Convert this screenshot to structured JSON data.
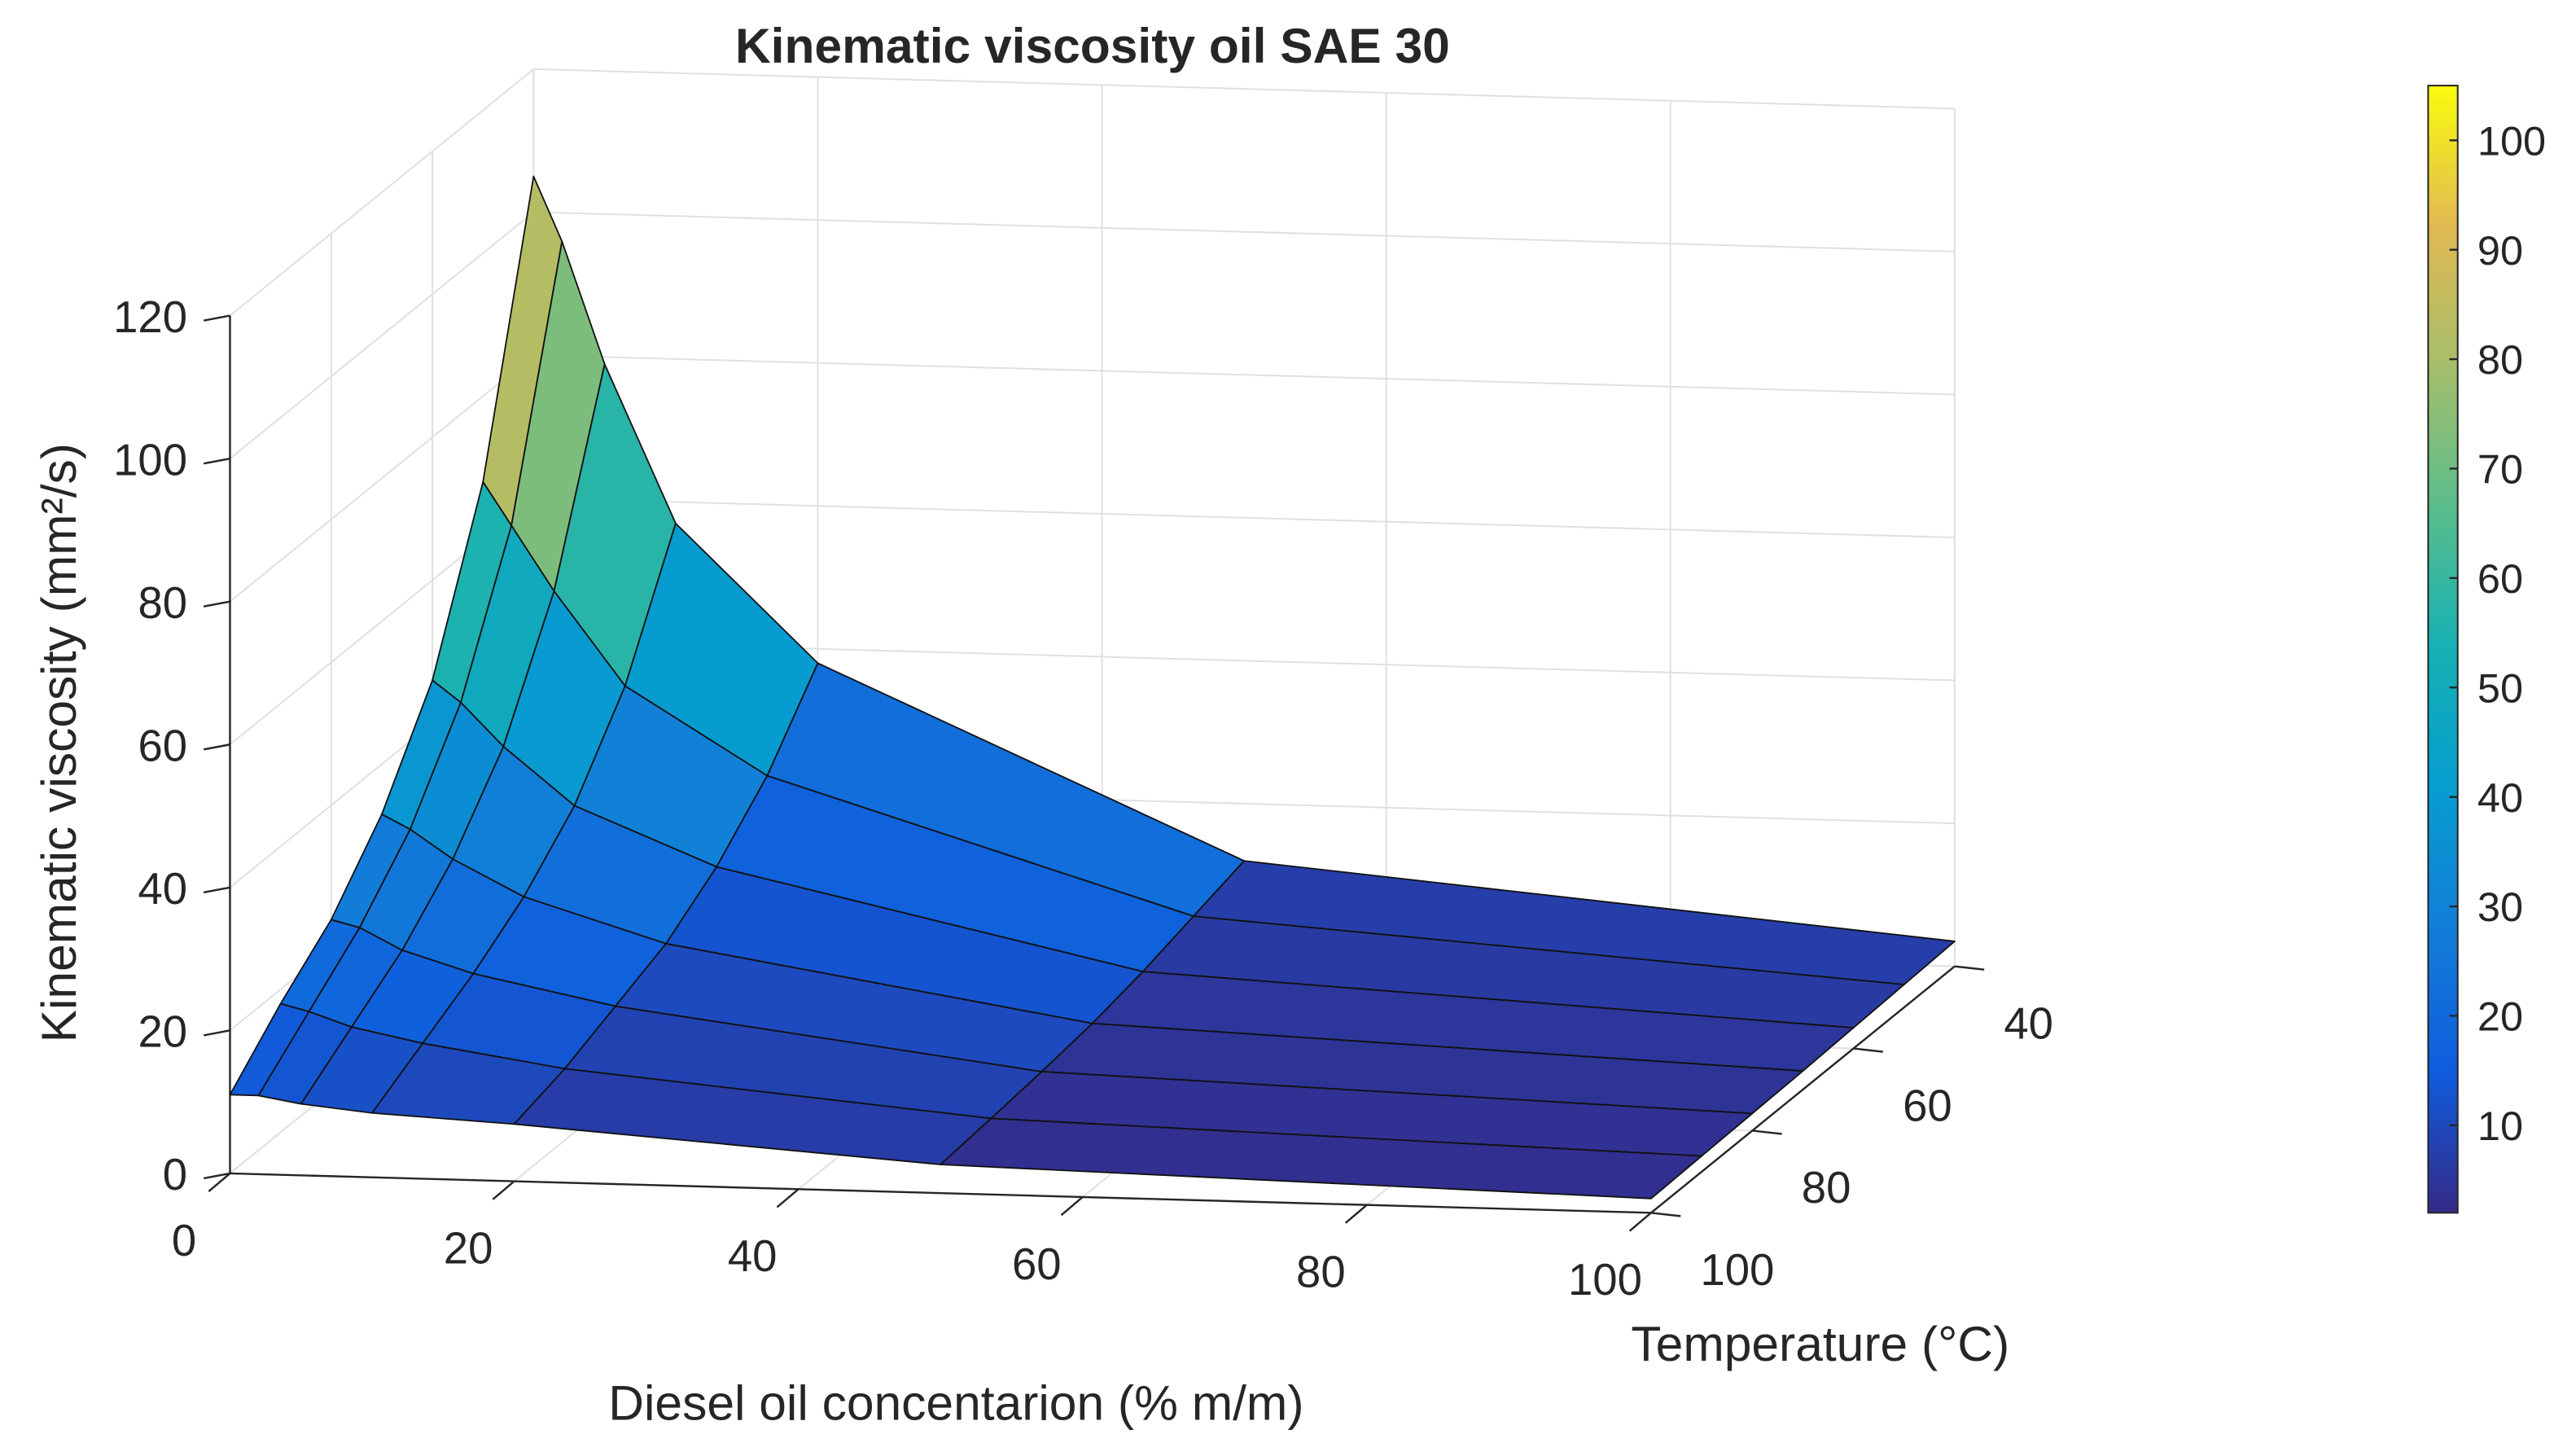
{
  "chart_data": {
    "type": "surface",
    "title": "Kinematic viscosity oil SAE 30",
    "xlabel": "Diesel oil concentarion (% m/m)",
    "ylabel": "Temperature  (°C)",
    "zlabel": "Kinematic viscosity (mm²/s)",
    "x": [
      0,
      2,
      5,
      10,
      20,
      50,
      100
    ],
    "y": [
      40,
      50,
      60,
      70,
      80,
      90,
      100
    ],
    "z": [
      [
        105,
        96,
        79,
        57,
        38,
        12,
        3.5
      ],
      [
        68,
        62,
        53,
        40,
        28,
        10,
        3.2
      ],
      [
        46,
        43,
        37,
        29,
        21,
        8,
        2.9
      ],
      [
        33,
        31,
        27,
        22,
        16,
        6.5,
        2.6
      ],
      [
        24,
        23,
        20,
        17,
        13,
        5.5,
        2.4
      ],
      [
        18,
        17,
        15,
        13,
        10,
        4.7,
        2.2
      ],
      [
        11,
        11,
        10,
        9,
        8,
        4,
        2.0
      ]
    ],
    "xlim": [
      0,
      100
    ],
    "ylim": [
      40,
      100
    ],
    "zlim": [
      0,
      120
    ],
    "xticks": [
      0,
      20,
      40,
      60,
      80,
      100
    ],
    "yticks": [
      40,
      60,
      80,
      100
    ],
    "zticks": [
      0,
      20,
      40,
      60,
      80,
      100,
      120
    ],
    "colormap": "parula",
    "colorbar": {
      "clim": [
        2,
        105
      ],
      "ticks": [
        10,
        20,
        30,
        40,
        50,
        60,
        70,
        80,
        90,
        100
      ]
    },
    "grid": true
  }
}
